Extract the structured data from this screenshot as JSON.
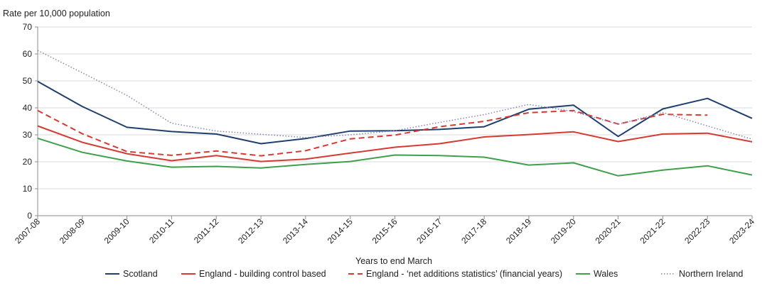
{
  "chart_data": {
    "type": "line",
    "ylabel": "Rate per 10,000 population",
    "xlabel": "Years to end March",
    "ylim": [
      0,
      70
    ],
    "yticks": [
      0,
      10,
      20,
      30,
      40,
      50,
      60,
      70
    ],
    "grid": "horizontal",
    "legend_position": "bottom",
    "categories": [
      "2007-08",
      "2008-09",
      "2009-10",
      "2010-11",
      "2011-12",
      "2012-13",
      "2013-14",
      "2014-15",
      "2015-16",
      "2016-17",
      "2017-18",
      "2018-19",
      "2019-20",
      "2020-21",
      "2021-22",
      "2022-23",
      "2023-24"
    ],
    "series": [
      {
        "name": "Scotland",
        "color": "#1f3f6e",
        "dash": "solid",
        "values": [
          49.8,
          40.5,
          32.8,
          31.2,
          30.3,
          26.7,
          28.6,
          31.4,
          31.5,
          32.0,
          33.0,
          39.5,
          41.0,
          29.4,
          39.6,
          43.5,
          36.1
        ]
      },
      {
        "name": "England - building control based",
        "color": "#d63a33",
        "dash": "solid",
        "values": [
          33.3,
          27.2,
          23.0,
          20.4,
          22.3,
          20.1,
          21.0,
          23.2,
          25.4,
          26.7,
          29.2,
          30.1,
          31.1,
          27.5,
          30.3,
          30.6,
          27.4
        ]
      },
      {
        "name": "England -  ‘net additions statistics’ (financial years)",
        "color": "#d63a33",
        "dash": "dashed",
        "values": [
          39.0,
          30.4,
          23.8,
          22.4,
          24.0,
          22.2,
          24.1,
          28.5,
          29.9,
          33.0,
          35.0,
          38.2,
          39.0,
          34.0,
          37.6,
          37.3,
          null
        ]
      },
      {
        "name": "Wales",
        "color": "#3ea04a",
        "dash": "solid",
        "values": [
          28.7,
          23.5,
          20.3,
          18.0,
          18.3,
          17.7,
          19.0,
          20.1,
          22.5,
          22.3,
          21.7,
          18.8,
          19.6,
          14.8,
          16.9,
          18.5,
          15.1
        ]
      },
      {
        "name": "Northern Ireland",
        "color": "#8a85b8",
        "dash": "dotted",
        "values": [
          61.3,
          53.0,
          44.6,
          34.3,
          31.4,
          30.2,
          29.0,
          30.0,
          31.5,
          34.6,
          37.5,
          41.3,
          38.6,
          33.9,
          38.3,
          33.3,
          28.4
        ]
      }
    ]
  }
}
